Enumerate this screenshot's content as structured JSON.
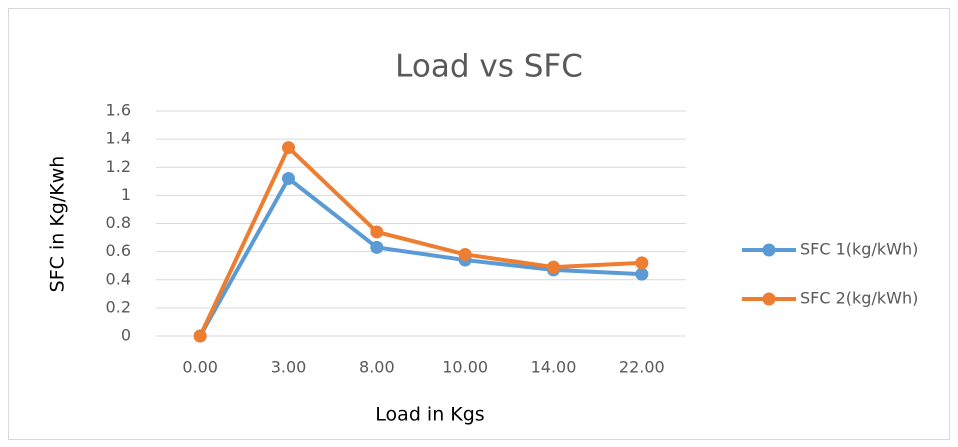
{
  "chart_data": {
    "type": "line",
    "title": "Load vs SFC",
    "x_label": "Load in Kgs",
    "y_label": "SFC in Kg/Kwh",
    "categories": [
      "0.00",
      "3.00",
      "8.00",
      "10.00",
      "14.00",
      "22.00"
    ],
    "series": [
      {
        "name": "SFC 1(kg/kWh)",
        "color": "#5b9bd5",
        "values": [
          0,
          1.12,
          0.63,
          0.54,
          0.47,
          0.44
        ]
      },
      {
        "name": "SFC 2(kg/kWh)",
        "color": "#ed7d31",
        "values": [
          0,
          1.34,
          0.74,
          0.58,
          0.49,
          0.52
        ]
      }
    ],
    "ylim": [
      0,
      1.6
    ],
    "yticks": [
      0,
      0.2,
      0.4,
      0.6,
      0.8,
      1,
      1.2,
      1.4,
      1.6
    ],
    "grid": true,
    "legend": "right"
  }
}
